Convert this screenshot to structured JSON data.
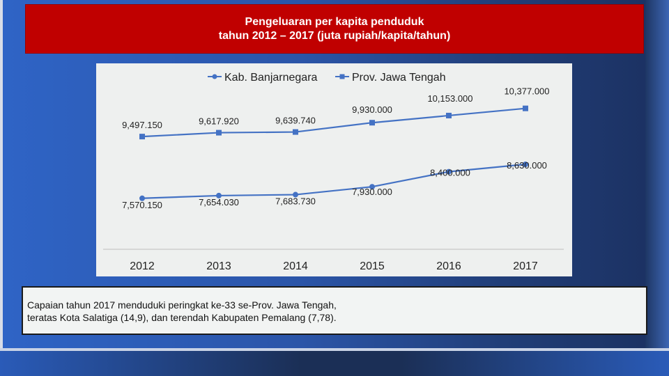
{
  "title": {
    "line1": "Pengeluaran per kapita penduduk",
    "line2": "tahun 2012 – 2017 (juta rupiah/kapita/tahun)"
  },
  "note": {
    "line1": "Capaian  tahun 2017 menduduki peringkat ke-33 se-Prov. Jawa Tengah,",
    "line2": "teratas Kota Salatiga (14,9), dan terendah Kabupaten Pemalang (7,78)."
  },
  "colors": {
    "title_bg": "#c00000",
    "series": "#4472c4"
  },
  "chart_data": {
    "type": "line",
    "categories": [
      "2012",
      "2013",
      "2014",
      "2015",
      "2016",
      "2017"
    ],
    "legend_position": "top",
    "ylim": [
      6000,
      11000
    ],
    "series": [
      {
        "name": "Kab. Banjarnegara",
        "marker": "circle",
        "values": [
          7570.15,
          7654.03,
          7683.73,
          7930.0,
          8400.0,
          8630.0
        ],
        "labels": [
          "7,570.150",
          "7,654.030",
          "7,683.730",
          "7,930.000",
          "8,400.000",
          "8,630.000"
        ]
      },
      {
        "name": "Prov. Jawa Tengah",
        "marker": "square",
        "values": [
          9497.15,
          9617.92,
          9639.74,
          9930.0,
          10153.0,
          10377.0
        ],
        "labels": [
          "9,497.150",
          "9,617.920",
          "9,639.740",
          "9,930.000",
          "10,153.000",
          "10,377.000"
        ]
      }
    ]
  }
}
